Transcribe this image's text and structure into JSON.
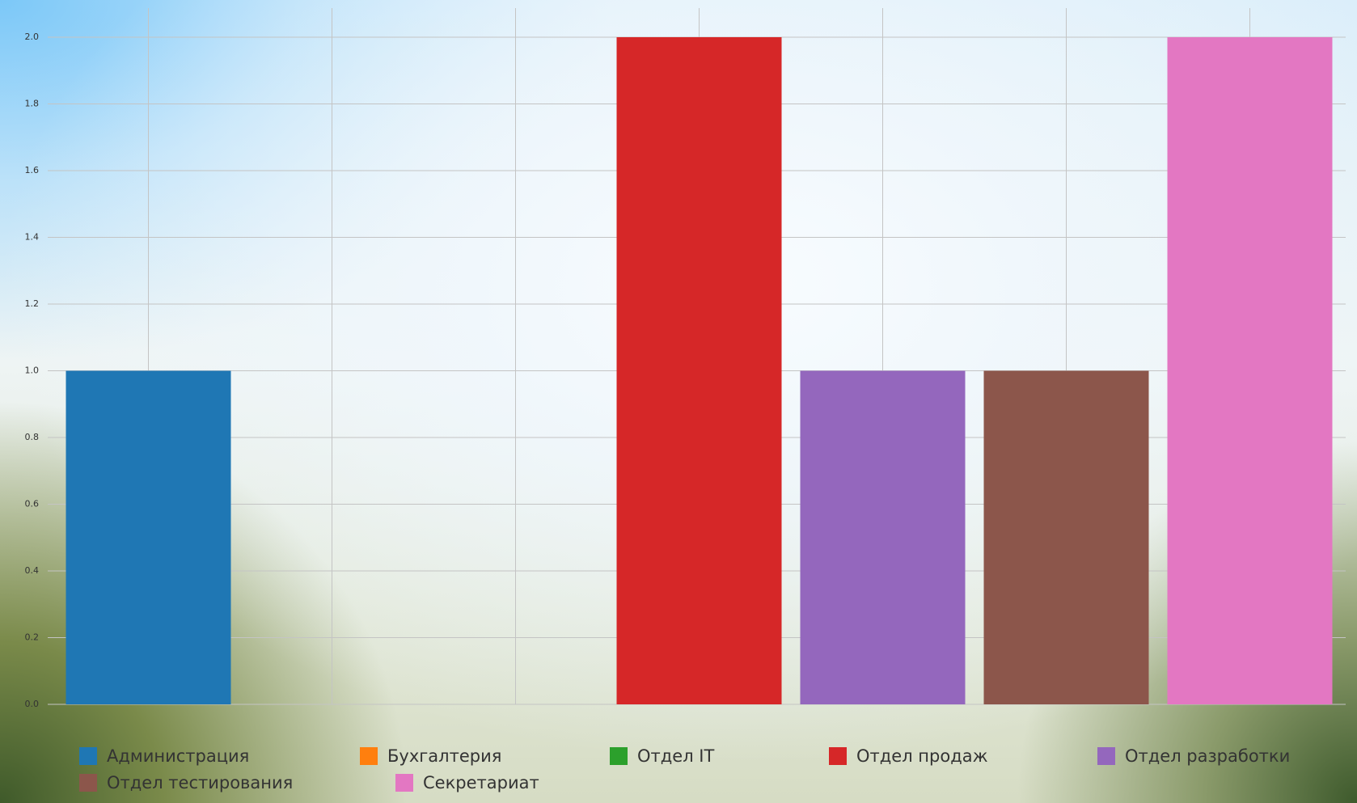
{
  "chart_data": {
    "type": "bar",
    "categories": [
      "Администрация",
      "Бухгалтерия",
      "Отдел IT",
      "Отдел продаж",
      "Отдел разработки",
      "Отдел тестирования",
      "Секретариат"
    ],
    "values": [
      1,
      0,
      0,
      2,
      1,
      1,
      2
    ],
    "colors": [
      "#1f77b4",
      "#ff7f0e",
      "#2ca02c",
      "#d62728",
      "#9467bd",
      "#8c564b",
      "#e377c2"
    ],
    "ylim": [
      0,
      2
    ],
    "yticks": [
      {
        "value": 0,
        "label": "0.0"
      },
      0.2,
      0.4,
      0.6,
      0.8,
      {
        "value": 1,
        "label": "1.0"
      },
      1.2,
      1.4,
      1.6,
      1.8,
      {
        "value": 2,
        "label": "2.0"
      }
    ],
    "grid": true,
    "legend": "bottom"
  }
}
